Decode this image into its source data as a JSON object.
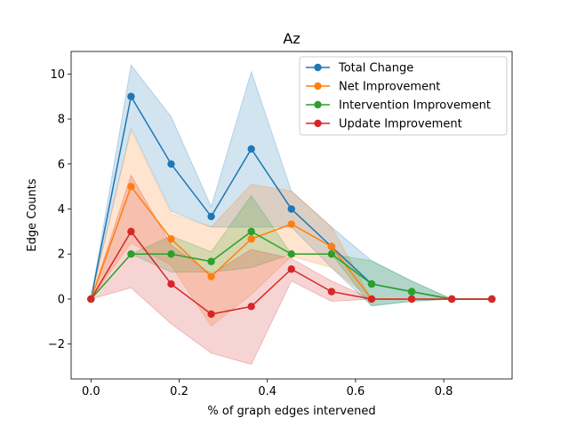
{
  "chart_data": {
    "type": "line",
    "title": "Az",
    "xlabel": "% of graph edges intervened",
    "ylabel": "Edge Counts",
    "xlim": [
      -0.045,
      0.955
    ],
    "ylim": [
      -3.55,
      11.0
    ],
    "xticks": [
      0.0,
      0.2,
      0.4,
      0.6,
      0.8
    ],
    "xtick_labels": [
      "0.0",
      "0.2",
      "0.4",
      "0.6",
      "0.8"
    ],
    "yticks": [
      -2,
      0,
      2,
      4,
      6,
      8,
      10
    ],
    "ytick_labels": [
      "−2",
      "0",
      "2",
      "4",
      "6",
      "8",
      "10"
    ],
    "grid": false,
    "legend_position": "upper-right",
    "x": [
      0.0,
      0.0909,
      0.1818,
      0.2727,
      0.3636,
      0.4545,
      0.5455,
      0.6364,
      0.7273,
      0.8182,
      0.9091
    ],
    "series": [
      {
        "name": "Total Change",
        "color": "#1f77b4",
        "values": [
          0,
          9.0,
          6.0,
          3.67,
          6.67,
          4.0,
          2.33,
          0.67,
          0.33,
          0,
          0
        ],
        "upper": [
          0,
          10.4,
          8.1,
          4.1,
          10.1,
          4.8,
          3.2,
          1.7,
          0.8,
          0,
          0
        ],
        "lower": [
          0,
          7.6,
          3.9,
          3.2,
          3.2,
          3.2,
          1.4,
          -0.3,
          -0.1,
          0,
          0
        ]
      },
      {
        "name": "Net Improvement",
        "color": "#ff7f0e",
        "values": [
          0,
          5.0,
          2.67,
          1.0,
          2.67,
          3.33,
          2.33,
          0.0,
          0.0,
          0,
          0
        ],
        "upper": [
          0,
          7.5,
          3.8,
          3.2,
          5.1,
          4.8,
          3.2,
          0.0,
          0.0,
          0,
          0
        ],
        "lower": [
          0,
          2.5,
          1.5,
          -1.2,
          0.2,
          1.9,
          1.4,
          0.0,
          0.0,
          0,
          0
        ]
      },
      {
        "name": "Intervention Improvement",
        "color": "#2ca02c",
        "values": [
          0,
          2.0,
          2.0,
          1.67,
          3.0,
          2.0,
          2.0,
          0.67,
          0.33,
          0,
          0
        ],
        "upper": [
          0,
          2.0,
          2.8,
          2.1,
          4.6,
          2.0,
          2.0,
          1.7,
          0.8,
          0,
          0
        ],
        "lower": [
          0,
          2.0,
          1.2,
          1.2,
          1.4,
          2.0,
          2.0,
          -0.3,
          -0.1,
          0,
          0
        ]
      },
      {
        "name": "Update Improvement",
        "color": "#d62728",
        "values": [
          0,
          3.0,
          0.67,
          -0.67,
          -0.33,
          1.33,
          0.33,
          0.0,
          0.0,
          0,
          0
        ],
        "upper": [
          0,
          5.5,
          2.4,
          1.1,
          2.2,
          1.8,
          0.8,
          0.0,
          0.0,
          0,
          0
        ],
        "lower": [
          0,
          0.5,
          -1.1,
          -2.4,
          -2.9,
          0.8,
          -0.1,
          0.0,
          0.0,
          0,
          0
        ]
      }
    ]
  }
}
